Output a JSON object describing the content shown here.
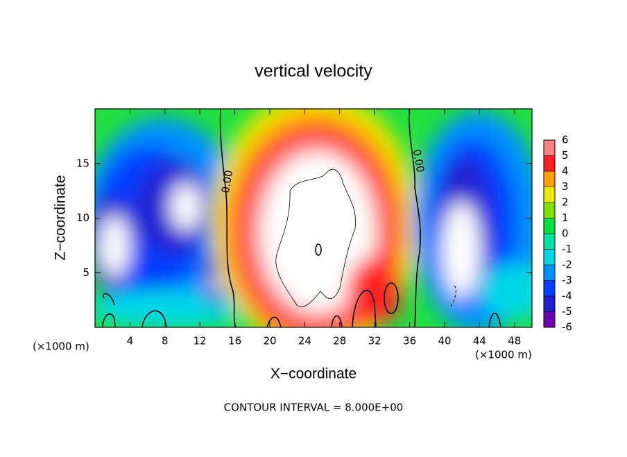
{
  "chart_data": {
    "type": "contour",
    "title": "vertical velocity",
    "xlabel": "X−coordinate",
    "ylabel": "Z−coordinate",
    "x_unit": "(×1000 m)",
    "footer": "CONTOUR INTERVAL = 8.000E+00",
    "contour_label": "0.00",
    "xlim": [
      0,
      50
    ],
    "xticks": [
      4,
      8,
      12,
      16,
      20,
      24,
      28,
      32,
      36,
      40,
      44,
      48
    ],
    "ylim": [
      0,
      20
    ],
    "yticks": [
      5,
      10,
      15
    ],
    "colorbar": {
      "ticks": [
        -6,
        -5,
        -4,
        -3,
        -2,
        -1,
        0,
        1,
        2,
        3,
        4,
        5,
        6
      ],
      "colors": [
        "#6a00b0",
        "#2020d0",
        "#0040ff",
        "#0090ff",
        "#00d8e8",
        "#00e0a0",
        "#00e040",
        "#80e000",
        "#e8e800",
        "#ffa000",
        "#ff2020",
        "#ff8080"
      ]
    }
  }
}
